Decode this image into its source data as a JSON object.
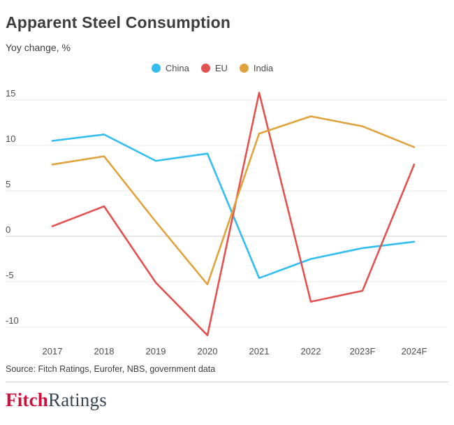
{
  "chart_data": {
    "type": "line",
    "title": "Apparent Steel Consumption",
    "ylabel": "Yoy change, %",
    "xlabel": "",
    "categories": [
      "2017",
      "2018",
      "2019",
      "2020",
      "2021",
      "2022",
      "2023F",
      "2024F"
    ],
    "series": [
      {
        "name": "China",
        "color": "#33bdf0",
        "values": [
          10.5,
          11.2,
          8.3,
          9.1,
          -4.6,
          -2.5,
          -1.3,
          -0.6
        ]
      },
      {
        "name": "EU",
        "color": "#e35150",
        "values": [
          1.1,
          3.3,
          -5.1,
          -10.9,
          15.8,
          -7.2,
          -6.0,
          7.9
        ]
      },
      {
        "name": "India",
        "color": "#e0a33c",
        "values": [
          7.9,
          8.8,
          1.6,
          -5.3,
          11.3,
          13.2,
          12.1,
          9.8
        ]
      }
    ],
    "yticks": [
      15,
      10,
      5,
      0,
      -5,
      -10
    ],
    "ylim": [
      -11.5,
      16.5
    ],
    "grid": true,
    "legend_position": "top-center"
  },
  "footer": {
    "source": "Source: Fitch Ratings, Eurofer, NBS, government data",
    "logo": {
      "part1": "Fitch",
      "part2": "Ratings",
      "color1": "#d0103c",
      "color2": "#3a4654"
    }
  },
  "colors": {
    "grid": "#e7e7e7",
    "zero_line": "#cdcdcd",
    "tick_text": "#4d4d4d",
    "title_text": "#3d3d3d"
  }
}
